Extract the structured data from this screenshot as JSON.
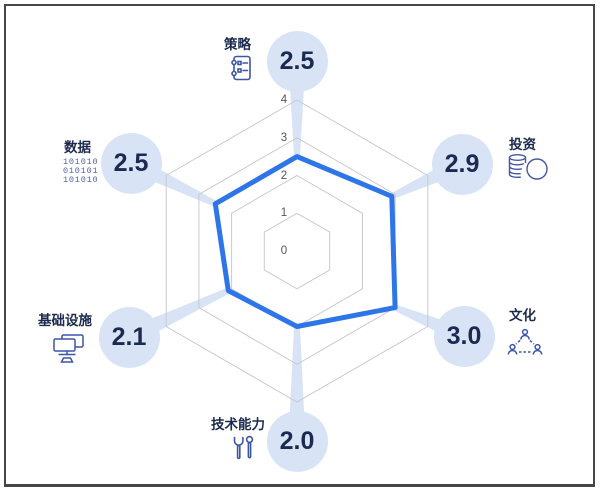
{
  "chart_data": {
    "type": "radar",
    "categories": [
      "策略",
      "投资",
      "文化",
      "技术能力",
      "基础设施",
      "数据"
    ],
    "values": [
      2.5,
      2.9,
      3.0,
      2.0,
      2.1,
      2.5
    ],
    "value_labels": [
      "2.5",
      "2.9",
      "3.0",
      "2.0",
      "2.1",
      "2.5"
    ],
    "scale_ticks": [
      "0",
      "1",
      "2",
      "3",
      "4"
    ],
    "axis_range": [
      0,
      4
    ],
    "grid_shape": "hexagon",
    "grid_levels": 4,
    "legend": "none",
    "polygon_color": "#2e75e8",
    "grid_color": "#c9cad0",
    "bubble_color": "#d8e4f6"
  },
  "icon_names": [
    "notebook-list-icon",
    "coins-icon",
    "people-network-icon",
    "tools-icon",
    "computer-network-icon",
    "binary-data-icon"
  ],
  "binary_icon_lines": [
    "101010",
    "010101",
    "101010"
  ]
}
